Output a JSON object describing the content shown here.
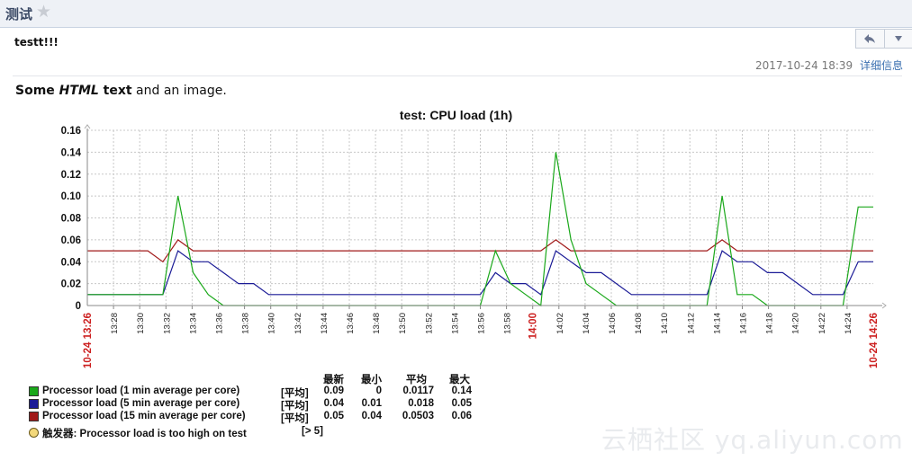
{
  "header": {
    "title": "测试",
    "star_icon": "star-icon"
  },
  "message": {
    "subject": "testt!!!",
    "date": "2017-10-24 18:39",
    "details_link": "详细信息",
    "reply_icon": "reply-icon",
    "more_icon": "chevron-down-icon"
  },
  "body_text": {
    "part1": "Some ",
    "html_word": "HTML",
    "part2": " text",
    "part3": " and an image."
  },
  "chart_data": {
    "type": "line",
    "title": "test: CPU load (1h)",
    "ylim": [
      0,
      0.16
    ],
    "y_ticks": [
      "0",
      "0.02",
      "0.04",
      "0.06",
      "0.08",
      "0.10",
      "0.12",
      "0.14",
      "0.16"
    ],
    "x_ticks": [
      "13:28",
      "13:30",
      "13:32",
      "13:34",
      "13:36",
      "13:38",
      "13:40",
      "13:42",
      "13:44",
      "13:46",
      "13:48",
      "13:50",
      "13:52",
      "13:54",
      "13:56",
      "13:58",
      "14:00",
      "14:02",
      "14:04",
      "14:06",
      "14:08",
      "14:10",
      "14:12",
      "14:14",
      "14:16",
      "14:18",
      "14:20",
      "14:22",
      "14:24"
    ],
    "x_start_label": "10-24 13:26",
    "x_end_label": "10-24 14:26",
    "highlight_tick": "14:00",
    "grid": true,
    "series": [
      {
        "name": "Processor load (1 min average per core)",
        "color": "#1aa81a",
        "points": [
          [
            0,
            0.01
          ],
          [
            5,
            0.01
          ],
          [
            6,
            0.1
          ],
          [
            7,
            0.03
          ],
          [
            8,
            0.01
          ],
          [
            9,
            0
          ],
          [
            26,
            0
          ],
          [
            27,
            0.05
          ],
          [
            28,
            0.02
          ],
          [
            29,
            0.01
          ],
          [
            30,
            0
          ],
          [
            31,
            0.14
          ],
          [
            32,
            0.06
          ],
          [
            33,
            0.02
          ],
          [
            34,
            0.01
          ],
          [
            35,
            0
          ],
          [
            41,
            0
          ],
          [
            42,
            0.1
          ],
          [
            43,
            0.01
          ],
          [
            44,
            0.01
          ],
          [
            45,
            0
          ],
          [
            50,
            0
          ],
          [
            51,
            0.09
          ],
          [
            52,
            0.09
          ]
        ]
      },
      {
        "name": "Processor load (5 min average per core)",
        "color": "#1a1a96",
        "points": [
          [
            0,
            0.01
          ],
          [
            5,
            0.01
          ],
          [
            6,
            0.05
          ],
          [
            7,
            0.04
          ],
          [
            8,
            0.04
          ],
          [
            9,
            0.03
          ],
          [
            10,
            0.02
          ],
          [
            11,
            0.02
          ],
          [
            12,
            0.01
          ],
          [
            26,
            0.01
          ],
          [
            27,
            0.03
          ],
          [
            28,
            0.02
          ],
          [
            29,
            0.02
          ],
          [
            30,
            0.01
          ],
          [
            31,
            0.05
          ],
          [
            32,
            0.04
          ],
          [
            33,
            0.03
          ],
          [
            34,
            0.03
          ],
          [
            35,
            0.02
          ],
          [
            36,
            0.01
          ],
          [
            41,
            0.01
          ],
          [
            42,
            0.05
          ],
          [
            43,
            0.04
          ],
          [
            44,
            0.04
          ],
          [
            45,
            0.03
          ],
          [
            46,
            0.03
          ],
          [
            47,
            0.02
          ],
          [
            48,
            0.01
          ],
          [
            50,
            0.01
          ],
          [
            51,
            0.04
          ],
          [
            52,
            0.04
          ]
        ]
      },
      {
        "name": "Processor load (15 min average per core)",
        "color": "#a11a1a",
        "points": [
          [
            0,
            0.05
          ],
          [
            4,
            0.05
          ],
          [
            5,
            0.04
          ],
          [
            6,
            0.06
          ],
          [
            7,
            0.05
          ],
          [
            30,
            0.05
          ],
          [
            31,
            0.06
          ],
          [
            32,
            0.05
          ],
          [
            41,
            0.05
          ],
          [
            42,
            0.06
          ],
          [
            43,
            0.05
          ],
          [
            52,
            0.05
          ]
        ]
      }
    ]
  },
  "legend": {
    "headers": {
      "last": "最新",
      "min": "最小",
      "avg": "平均",
      "max": "最大"
    },
    "rows": [
      {
        "name": "Processor load (1 min average per core)",
        "func": "[平均]",
        "last": "0.09",
        "min": "0",
        "avg": "0.0117",
        "max": "0.14",
        "color": "#1aa81a"
      },
      {
        "name": "Processor load (5 min average per core)",
        "func": "[平均]",
        "last": "0.04",
        "min": "0.01",
        "avg": "0.018",
        "max": "0.05",
        "color": "#1a1a96"
      },
      {
        "name": "Processor load (15 min average per core)",
        "func": "[平均]",
        "last": "0.05",
        "min": "0.04",
        "avg": "0.0503",
        "max": "0.06",
        "color": "#a11a1a"
      }
    ],
    "trigger": {
      "name": "触发器: Processor load is too high on test",
      "value": "[> 5]",
      "color": "#f3d87a"
    }
  },
  "watermark": "云栖社区 yq.aliyun.com"
}
